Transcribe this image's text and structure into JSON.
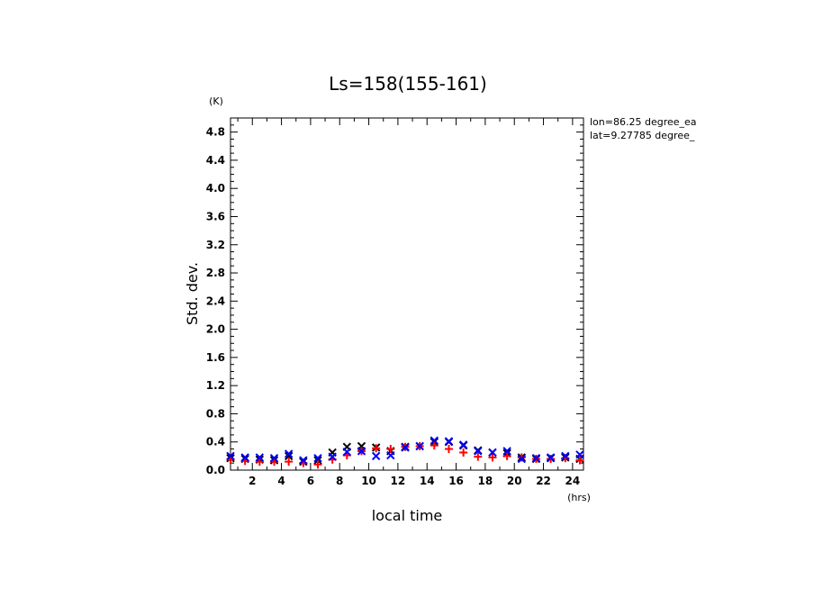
{
  "chart_data": {
    "type": "scatter",
    "title": "Ls=158(155-161)",
    "xlabel": "local time",
    "ylabel": "Std. dev.",
    "x_unit": "(hrs)",
    "y_unit": "(K)",
    "xlim": [
      0.5,
      24.75
    ],
    "ylim": [
      0,
      5.0
    ],
    "x_ticks": [
      2,
      4,
      6,
      8,
      10,
      12,
      14,
      16,
      18,
      20,
      22,
      24
    ],
    "y_ticks": [
      0.0,
      0.4,
      0.8,
      1.2,
      1.6,
      2.0,
      2.4,
      2.8,
      3.2,
      3.6,
      4.0,
      4.4,
      4.8
    ],
    "annotations": [
      "lon=86.25 degree_ea",
      "lat=9.27785 degree_"
    ],
    "series": [
      {
        "name": "black x",
        "marker": "x",
        "color": "#000000",
        "x": [
          0.5,
          1.5,
          2.5,
          3.5,
          4.5,
          5.5,
          6.5,
          7.5,
          8.5,
          9.5,
          10.5,
          11.5,
          12.5,
          13.5,
          14.5,
          15.5,
          16.5,
          17.5,
          18.5,
          19.5,
          20.5,
          21.5,
          22.5,
          23.5,
          24.5
        ],
        "y": [
          0.17,
          0.16,
          0.15,
          0.14,
          0.2,
          0.12,
          0.14,
          0.25,
          0.33,
          0.34,
          0.32,
          0.27,
          0.33,
          0.34,
          0.4,
          0.4,
          0.35,
          0.28,
          0.25,
          0.24,
          0.18,
          0.16,
          0.17,
          0.18,
          0.16
        ]
      },
      {
        "name": "red +",
        "marker": "+",
        "color": "#ff0000",
        "x": [
          0.5,
          1.5,
          2.5,
          3.5,
          4.5,
          5.5,
          6.5,
          7.5,
          8.5,
          9.5,
          10.5,
          11.5,
          12.5,
          13.5,
          14.5,
          15.5,
          16.5,
          17.5,
          18.5,
          19.5,
          20.5,
          21.5,
          22.5,
          23.5,
          24.5
        ],
        "y": [
          0.15,
          0.13,
          0.12,
          0.12,
          0.12,
          0.1,
          0.08,
          0.15,
          0.21,
          0.27,
          0.31,
          0.3,
          0.33,
          0.34,
          0.35,
          0.3,
          0.25,
          0.19,
          0.18,
          0.2,
          0.18,
          0.16,
          0.16,
          0.17,
          0.14
        ]
      },
      {
        "name": "blue x",
        "marker": "x",
        "color": "#0000ff",
        "x": [
          0.5,
          1.5,
          2.5,
          3.5,
          4.5,
          5.5,
          6.5,
          7.5,
          8.5,
          9.5,
          10.5,
          11.5,
          12.5,
          13.5,
          14.5,
          15.5,
          16.5,
          17.5,
          18.5,
          19.5,
          20.5,
          21.5,
          22.5,
          23.5,
          24.5
        ],
        "y": [
          0.2,
          0.18,
          0.18,
          0.17,
          0.23,
          0.14,
          0.17,
          0.19,
          0.26,
          0.27,
          0.2,
          0.21,
          0.32,
          0.34,
          0.42,
          0.41,
          0.36,
          0.27,
          0.25,
          0.27,
          0.16,
          0.17,
          0.18,
          0.2,
          0.22
        ]
      }
    ]
  }
}
